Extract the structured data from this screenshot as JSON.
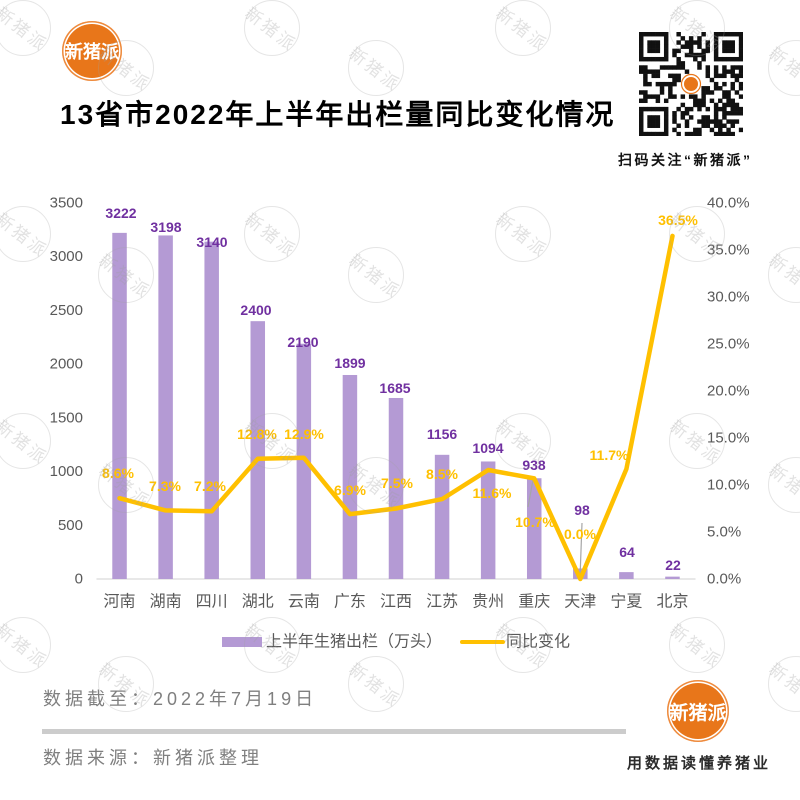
{
  "header": {
    "logo_text": "新猪派",
    "title": "13省市2022年上半年出栏量同比变化情况",
    "qr_caption": "扫码关注“新猪派”"
  },
  "footer": {
    "data_cutoff": "数据截至：2022年7月19日",
    "data_source": "数据来源：新猪派整理",
    "logo_text": "新猪派",
    "slogan": "用数据读懂养猪业"
  },
  "watermark": {
    "text": "新猪派"
  },
  "colors": {
    "brand_orange": "#E8761A",
    "bar": "#B49AD4",
    "bar_label": "#7030A0",
    "line": "#FFC000",
    "axis_text": "#595959",
    "axis_line": "#D9D9D9",
    "leader_line": "#A6A6A6",
    "footer_text": "#7F7F7F"
  },
  "chart_data": {
    "type": "bar",
    "title": "13省市2022年上半年出栏量同比变化情况",
    "xlabel": "",
    "ylabel": "",
    "categories": [
      "河南",
      "湖南",
      "四川",
      "湖北",
      "云南",
      "广东",
      "江西",
      "江苏",
      "贵州",
      "重庆",
      "天津",
      "宁夏",
      "北京"
    ],
    "series": [
      {
        "name": "上半年生猪出栏（万头）",
        "type": "bar",
        "axis": "left",
        "values": [
          3222,
          3198,
          3140,
          2400,
          2190,
          1899,
          1685,
          1156,
          1094,
          938,
          98,
          64,
          22
        ],
        "labels": [
          "3222",
          "3198",
          "3140",
          "2400",
          "2190",
          "1899",
          "1685",
          "1156",
          "1094",
          "938",
          "98",
          "64",
          "22"
        ]
      },
      {
        "name": "同比变化",
        "type": "line",
        "axis": "right",
        "unit": "%",
        "values": [
          8.6,
          7.3,
          7.2,
          12.8,
          12.9,
          6.9,
          7.5,
          8.5,
          11.6,
          10.7,
          0.0,
          11.7,
          36.5
        ],
        "labels": [
          "8.6%",
          "7.3%",
          "7.2%",
          "12.8%",
          "12.9%",
          "6.9%",
          "7.5%",
          "8.5%",
          "11.6%",
          "10.7%",
          "0.0%",
          "11.7%",
          "36.5%"
        ]
      }
    ],
    "ylim": [
      0,
      3500
    ],
    "y_ticks": [
      0,
      500,
      1000,
      1500,
      2000,
      2500,
      3000,
      3500
    ],
    "y_tick_labels": [
      "0",
      "500",
      "1000",
      "1500",
      "2000",
      "2500",
      "3000",
      "3500"
    ],
    "y2lim": [
      0,
      40
    ],
    "y2_ticks": [
      0,
      5,
      10,
      15,
      20,
      25,
      30,
      35,
      40
    ],
    "y2_tick_labels": [
      "0.0%",
      "5.0%",
      "10.0%",
      "15.0%",
      "20.0%",
      "25.0%",
      "30.0%",
      "35.0%",
      "40.0%"
    ],
    "grid": false,
    "legend": {
      "position": "bottom",
      "entries": [
        "上半年生猪出栏（万头）",
        "同比变化"
      ]
    }
  }
}
